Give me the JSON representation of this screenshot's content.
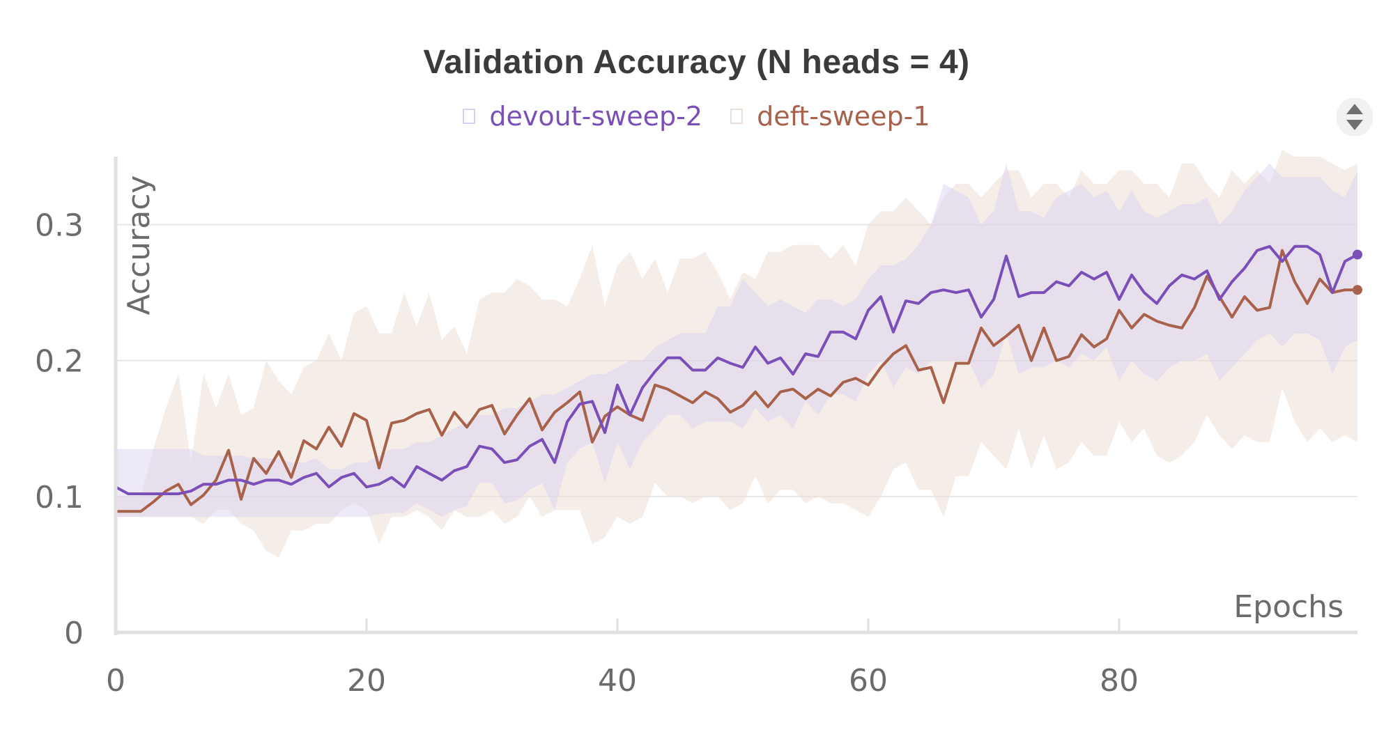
{
  "chart_data": {
    "type": "line",
    "title": "Validation Accuracy (N heads = 4)",
    "xlabel": "Epochs",
    "ylabel": "Accuracy",
    "xlim": [
      0,
      99
    ],
    "ylim": [
      0,
      0.35
    ],
    "xticks": [
      "0",
      "20",
      "40",
      "60",
      "80"
    ],
    "yticks": [
      "0",
      "0.1",
      "0.2",
      "0.3"
    ],
    "grid": true,
    "legend": "top-center",
    "series": [
      {
        "name": "devout-sweep-2",
        "color": "#7b4fb8",
        "band_color": "#d8cff0",
        "x": [
          0,
          1,
          2,
          3,
          4,
          5,
          6,
          7,
          8,
          9,
          10,
          11,
          12,
          13,
          14,
          15,
          16,
          17,
          18,
          19,
          20,
          21,
          22,
          23,
          24,
          25,
          26,
          27,
          28,
          29,
          30,
          31,
          32,
          33,
          34,
          35,
          36,
          37,
          38,
          39,
          40,
          41,
          42,
          43,
          44,
          45,
          46,
          47,
          48,
          49,
          50,
          51,
          52,
          53,
          54,
          55,
          56,
          57,
          58,
          59,
          60,
          61,
          62,
          63,
          64,
          65,
          66,
          67,
          68,
          69,
          70,
          71,
          72,
          73,
          74,
          75,
          76,
          77,
          78,
          79,
          80,
          81,
          82,
          83,
          84,
          85,
          86,
          87,
          88,
          89,
          90,
          91,
          92,
          93,
          94,
          95,
          96,
          97,
          98,
          99
        ],
        "values": [
          0.107,
          0.102,
          0.102,
          0.102,
          0.102,
          0.102,
          0.104,
          0.109,
          0.109,
          0.112,
          0.112,
          0.109,
          0.112,
          0.112,
          0.109,
          0.114,
          0.117,
          0.107,
          0.114,
          0.117,
          0.107,
          0.109,
          0.114,
          0.107,
          0.122,
          0.117,
          0.112,
          0.119,
          0.122,
          0.137,
          0.135,
          0.125,
          0.127,
          0.137,
          0.142,
          0.125,
          0.155,
          0.168,
          0.17,
          0.147,
          0.182,
          0.16,
          0.18,
          0.192,
          0.202,
          0.202,
          0.193,
          0.193,
          0.202,
          0.198,
          0.195,
          0.21,
          0.198,
          0.202,
          0.19,
          0.205,
          0.203,
          0.221,
          0.221,
          0.216,
          0.237,
          0.247,
          0.221,
          0.244,
          0.242,
          0.25,
          0.252,
          0.25,
          0.252,
          0.232,
          0.245,
          0.277,
          0.247,
          0.25,
          0.25,
          0.258,
          0.255,
          0.265,
          0.26,
          0.265,
          0.245,
          0.263,
          0.25,
          0.242,
          0.255,
          0.263,
          0.26,
          0.266,
          0.245,
          0.258,
          0.268,
          0.281,
          0.284,
          0.273,
          0.284,
          0.284,
          0.278,
          0.25,
          0.273,
          0.278
        ],
        "band_upper": [
          0.135,
          0.135,
          0.135,
          0.135,
          0.135,
          0.135,
          0.135,
          0.13,
          0.13,
          0.13,
          0.13,
          0.128,
          0.128,
          0.128,
          0.125,
          0.125,
          0.128,
          0.12,
          0.12,
          0.125,
          0.125,
          0.13,
          0.135,
          0.135,
          0.14,
          0.14,
          0.145,
          0.15,
          0.155,
          0.16,
          0.16,
          0.165,
          0.165,
          0.17,
          0.175,
          0.175,
          0.18,
          0.185,
          0.19,
          0.19,
          0.195,
          0.2,
          0.2,
          0.21,
          0.215,
          0.22,
          0.22,
          0.22,
          0.24,
          0.24,
          0.26,
          0.25,
          0.24,
          0.245,
          0.24,
          0.235,
          0.245,
          0.245,
          0.24,
          0.245,
          0.26,
          0.27,
          0.27,
          0.275,
          0.285,
          0.3,
          0.33,
          0.325,
          0.32,
          0.3,
          0.31,
          0.345,
          0.31,
          0.31,
          0.305,
          0.32,
          0.325,
          0.33,
          0.32,
          0.325,
          0.31,
          0.325,
          0.31,
          0.305,
          0.31,
          0.315,
          0.315,
          0.32,
          0.3,
          0.31,
          0.325,
          0.335,
          0.345,
          0.335,
          0.335,
          0.335,
          0.335,
          0.325,
          0.32,
          0.34
        ],
        "band_lower": [
          0.085,
          0.085,
          0.085,
          0.085,
          0.085,
          0.085,
          0.085,
          0.085,
          0.085,
          0.085,
          0.085,
          0.085,
          0.085,
          0.085,
          0.085,
          0.085,
          0.085,
          0.085,
          0.085,
          0.085,
          0.085,
          0.087,
          0.088,
          0.088,
          0.095,
          0.09,
          0.085,
          0.09,
          0.093,
          0.11,
          0.11,
          0.095,
          0.097,
          0.105,
          0.11,
          0.09,
          0.125,
          0.135,
          0.14,
          0.11,
          0.14,
          0.12,
          0.14,
          0.15,
          0.16,
          0.16,
          0.15,
          0.155,
          0.155,
          0.155,
          0.15,
          0.165,
          0.155,
          0.16,
          0.15,
          0.17,
          0.16,
          0.175,
          0.175,
          0.17,
          0.19,
          0.2,
          0.18,
          0.195,
          0.19,
          0.2,
          0.2,
          0.2,
          0.2,
          0.18,
          0.19,
          0.22,
          0.19,
          0.195,
          0.195,
          0.2,
          0.195,
          0.205,
          0.2,
          0.21,
          0.185,
          0.2,
          0.19,
          0.185,
          0.195,
          0.2,
          0.2,
          0.205,
          0.185,
          0.195,
          0.205,
          0.215,
          0.22,
          0.21,
          0.22,
          0.22,
          0.215,
          0.19,
          0.21,
          0.215
        ]
      },
      {
        "name": "deft-sweep-1",
        "color": "#a8614a",
        "band_color": "#ecdfd5",
        "x": [
          0,
          1,
          2,
          3,
          4,
          5,
          6,
          7,
          8,
          9,
          10,
          11,
          12,
          13,
          14,
          15,
          16,
          17,
          18,
          19,
          20,
          21,
          22,
          23,
          24,
          25,
          26,
          27,
          28,
          29,
          30,
          31,
          32,
          33,
          34,
          35,
          36,
          37,
          38,
          39,
          40,
          41,
          42,
          43,
          44,
          45,
          46,
          47,
          48,
          49,
          50,
          51,
          52,
          53,
          54,
          55,
          56,
          57,
          58,
          59,
          60,
          61,
          62,
          63,
          64,
          65,
          66,
          67,
          68,
          69,
          70,
          71,
          72,
          73,
          74,
          75,
          76,
          77,
          78,
          79,
          80,
          81,
          82,
          83,
          84,
          85,
          86,
          87,
          88,
          89,
          90,
          91,
          92,
          93,
          94,
          95,
          96,
          97,
          98,
          99
        ],
        "values": [
          0.089,
          0.089,
          0.089,
          0.096,
          0.104,
          0.109,
          0.094,
          0.101,
          0.112,
          0.134,
          0.098,
          0.128,
          0.117,
          0.133,
          0.114,
          0.141,
          0.135,
          0.151,
          0.137,
          0.161,
          0.156,
          0.121,
          0.154,
          0.156,
          0.161,
          0.164,
          0.145,
          0.162,
          0.151,
          0.164,
          0.167,
          0.146,
          0.16,
          0.172,
          0.149,
          0.162,
          0.169,
          0.177,
          0.14,
          0.159,
          0.166,
          0.16,
          0.156,
          0.182,
          0.179,
          0.174,
          0.169,
          0.177,
          0.172,
          0.162,
          0.167,
          0.177,
          0.166,
          0.177,
          0.179,
          0.172,
          0.179,
          0.174,
          0.184,
          0.187,
          0.182,
          0.195,
          0.205,
          0.211,
          0.193,
          0.195,
          0.169,
          0.198,
          0.198,
          0.224,
          0.211,
          0.218,
          0.226,
          0.2,
          0.224,
          0.2,
          0.203,
          0.219,
          0.21,
          0.216,
          0.237,
          0.224,
          0.234,
          0.229,
          0.226,
          0.224,
          0.239,
          0.262,
          0.247,
          0.232,
          0.247,
          0.237,
          0.239,
          0.281,
          0.258,
          0.242,
          0.26,
          0.25,
          0.252,
          0.252
        ],
        "band_upper": [
          0.1,
          0.1,
          0.1,
          0.135,
          0.165,
          0.19,
          0.125,
          0.19,
          0.165,
          0.19,
          0.16,
          0.165,
          0.2,
          0.185,
          0.175,
          0.195,
          0.2,
          0.22,
          0.2,
          0.235,
          0.24,
          0.22,
          0.22,
          0.25,
          0.225,
          0.25,
          0.215,
          0.225,
          0.205,
          0.245,
          0.25,
          0.25,
          0.26,
          0.255,
          0.245,
          0.245,
          0.24,
          0.26,
          0.285,
          0.24,
          0.27,
          0.28,
          0.26,
          0.275,
          0.25,
          0.275,
          0.275,
          0.28,
          0.265,
          0.245,
          0.265,
          0.26,
          0.28,
          0.28,
          0.285,
          0.285,
          0.285,
          0.275,
          0.285,
          0.27,
          0.3,
          0.31,
          0.31,
          0.32,
          0.31,
          0.3,
          0.32,
          0.33,
          0.33,
          0.32,
          0.33,
          0.34,
          0.34,
          0.32,
          0.33,
          0.33,
          0.32,
          0.34,
          0.33,
          0.33,
          0.34,
          0.34,
          0.33,
          0.33,
          0.32,
          0.345,
          0.345,
          0.33,
          0.32,
          0.34,
          0.33,
          0.34,
          0.33,
          0.355,
          0.35,
          0.35,
          0.35,
          0.345,
          0.34,
          0.345
        ],
        "band_lower": [
          0.085,
          0.085,
          0.085,
          0.085,
          0.085,
          0.085,
          0.085,
          0.08,
          0.09,
          0.09,
          0.08,
          0.075,
          0.06,
          0.055,
          0.075,
          0.075,
          0.08,
          0.08,
          0.09,
          0.095,
          0.09,
          0.065,
          0.085,
          0.085,
          0.09,
          0.085,
          0.075,
          0.09,
          0.085,
          0.085,
          0.09,
          0.08,
          0.085,
          0.1,
          0.085,
          0.09,
          0.09,
          0.09,
          0.065,
          0.07,
          0.085,
          0.08,
          0.085,
          0.11,
          0.1,
          0.1,
          0.095,
          0.1,
          0.1,
          0.09,
          0.095,
          0.115,
          0.095,
          0.105,
          0.105,
          0.095,
          0.1,
          0.095,
          0.095,
          0.09,
          0.085,
          0.1,
          0.12,
          0.125,
          0.105,
          0.105,
          0.085,
          0.115,
          0.115,
          0.14,
          0.13,
          0.12,
          0.15,
          0.12,
          0.145,
          0.12,
          0.125,
          0.14,
          0.13,
          0.13,
          0.155,
          0.14,
          0.15,
          0.13,
          0.125,
          0.13,
          0.14,
          0.16,
          0.145,
          0.135,
          0.145,
          0.14,
          0.14,
          0.18,
          0.155,
          0.14,
          0.15,
          0.14,
          0.145,
          0.14
        ]
      }
    ]
  },
  "ui": {
    "sort_icon": "sort-arrows-icon"
  }
}
